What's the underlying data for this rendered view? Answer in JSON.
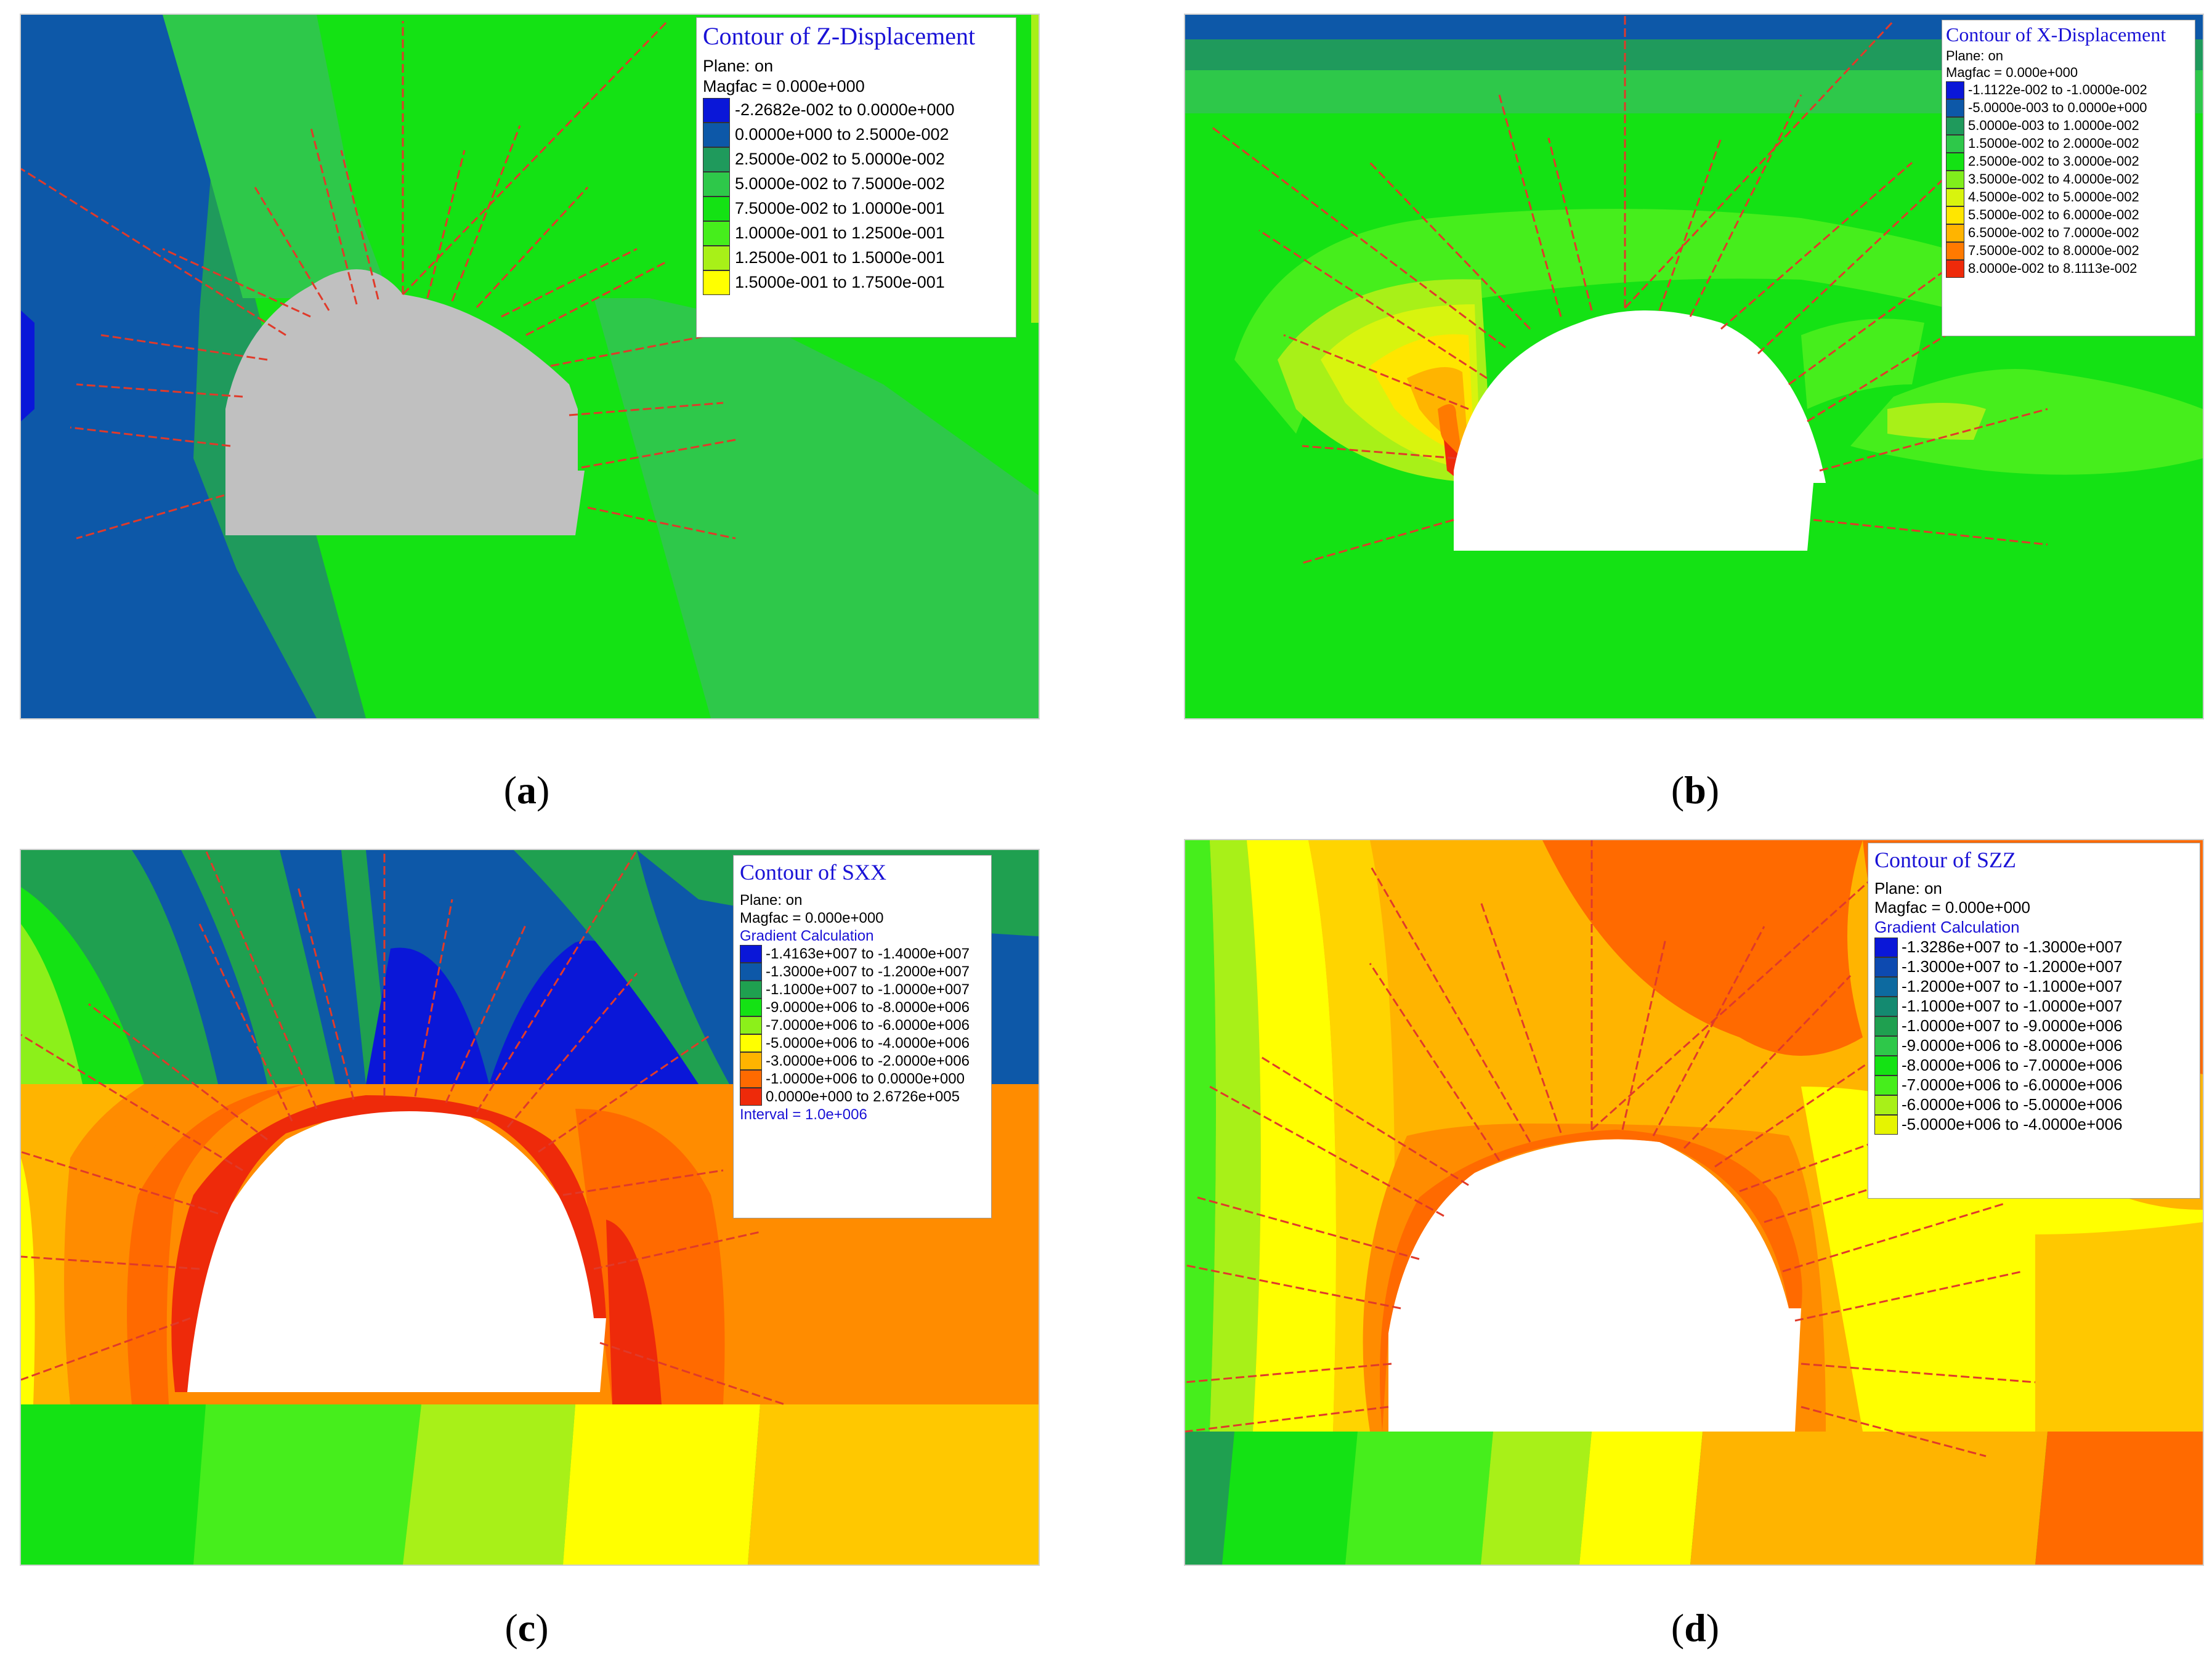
{
  "panels": [
    {
      "id": "a",
      "caption_open": "(",
      "caption_letter": "a",
      "caption_close": ")",
      "legend": {
        "title": "Contour of Z-Displacement",
        "lines": [
          "Plane: on",
          "Magfac =  0.000e+000"
        ],
        "ranges": [
          {
            "label": "-2.2682e-002 to  0.0000e+000",
            "color": "#0a17d8"
          },
          {
            "label": "0.0000e+000 to  2.5000e-002",
            "color": "#0d58a8"
          },
          {
            "label": "2.5000e-002 to  5.0000e-002",
            "color": "#1f9a5c"
          },
          {
            "label": "5.0000e-002 to  7.5000e-002",
            "color": "#2ec84a"
          },
          {
            "label": "7.5000e-002 to  1.0000e-001",
            "color": "#14e214"
          },
          {
            "label": "1.0000e-001 to  1.2500e-001",
            "color": "#46ee1c"
          },
          {
            "label": "1.2500e-001 to  1.5000e-001",
            "color": "#a8f018"
          },
          {
            "label": "1.5000e-001 to  1.7500e-001",
            "color": "#ffff00"
          }
        ]
      }
    },
    {
      "id": "b",
      "caption_open": "(",
      "caption_letter": "b",
      "caption_close": ")",
      "legend": {
        "title": "Contour of X-Displacement",
        "lines": [
          "Plane: on",
          "Magfac =  0.000e+000"
        ],
        "ranges": [
          {
            "label": "-1.1122e-002 to -1.0000e-002",
            "color": "#0a17d8"
          },
          {
            "label": "-5.0000e-003 to  0.0000e+000",
            "color": "#0d58a8"
          },
          {
            "label": "5.0000e-003 to  1.0000e-002",
            "color": "#1f9a5c"
          },
          {
            "label": "1.5000e-002 to  2.0000e-002",
            "color": "#2ec84a"
          },
          {
            "label": "2.5000e-002 to  3.0000e-002",
            "color": "#14e214"
          },
          {
            "label": "3.5000e-002 to  4.0000e-002",
            "color": "#80ee1c"
          },
          {
            "label": "4.5000e-002 to  5.0000e-002",
            "color": "#d8f40e"
          },
          {
            "label": "5.5000e-002 to  6.0000e-002",
            "color": "#ffe600"
          },
          {
            "label": "6.5000e-002 to  7.0000e-002",
            "color": "#ffb400"
          },
          {
            "label": "7.5000e-002 to  8.0000e-002",
            "color": "#ff7a00"
          },
          {
            "label": "8.0000e-002 to  8.1113e-002",
            "color": "#ee2a0a"
          }
        ]
      }
    },
    {
      "id": "c",
      "caption_open": "(",
      "caption_letter": "c",
      "caption_close": ")",
      "legend": {
        "title": "Contour of SXX",
        "lines": [
          "Plane: on",
          "Magfac =  0.000e+000"
        ],
        "subtitle": "Gradient Calculation",
        "ranges": [
          {
            "label": "-1.4163e+007 to -1.4000e+007",
            "color": "#0a17d8"
          },
          {
            "label": "-1.3000e+007 to -1.2000e+007",
            "color": "#0d58a8"
          },
          {
            "label": "-1.1000e+007 to -1.0000e+007",
            "color": "#1fa050"
          },
          {
            "label": "-9.0000e+006 to -8.0000e+006",
            "color": "#14e214"
          },
          {
            "label": "-7.0000e+006 to -6.0000e+006",
            "color": "#8cf01a"
          },
          {
            "label": "-5.0000e+006 to -4.0000e+006",
            "color": "#ffff00"
          },
          {
            "label": "-3.0000e+006 to -2.0000e+006",
            "color": "#ffb400"
          },
          {
            "label": "-1.0000e+006 to  0.0000e+000",
            "color": "#ff6a00"
          },
          {
            "label": "0.0000e+000 to  2.6726e+005",
            "color": "#ee2a0a"
          }
        ],
        "footer": "Interval =  1.0e+006"
      }
    },
    {
      "id": "d",
      "caption_open": "(",
      "caption_letter": "d",
      "caption_close": ")",
      "legend": {
        "title": "Contour of SZZ",
        "lines": [
          "Plane: on",
          "Magfac =  0.000e+000"
        ],
        "subtitle": "Gradient Calculation",
        "ranges": [
          {
            "label": "-1.3286e+007 to -1.3000e+007",
            "color": "#0a17d8"
          },
          {
            "label": "-1.3000e+007 to -1.2000e+007",
            "color": "#0d4ab0"
          },
          {
            "label": "-1.2000e+007 to -1.1000e+007",
            "color": "#0d6aa0"
          },
          {
            "label": "-1.1000e+007 to -1.0000e+007",
            "color": "#148a70"
          },
          {
            "label": "-1.0000e+007 to -9.0000e+006",
            "color": "#1fa050"
          },
          {
            "label": "-9.0000e+006 to -8.0000e+006",
            "color": "#2ec84a"
          },
          {
            "label": "-8.0000e+006 to -7.0000e+006",
            "color": "#14e214"
          },
          {
            "label": "-7.0000e+006 to -6.0000e+006",
            "color": "#46ee1c"
          },
          {
            "label": "-6.0000e+006 to -5.0000e+006",
            "color": "#a8f018"
          },
          {
            "label": "-5.0000e+006 to -4.0000e+006",
            "color": "#e6f400"
          }
        ]
      }
    }
  ]
}
